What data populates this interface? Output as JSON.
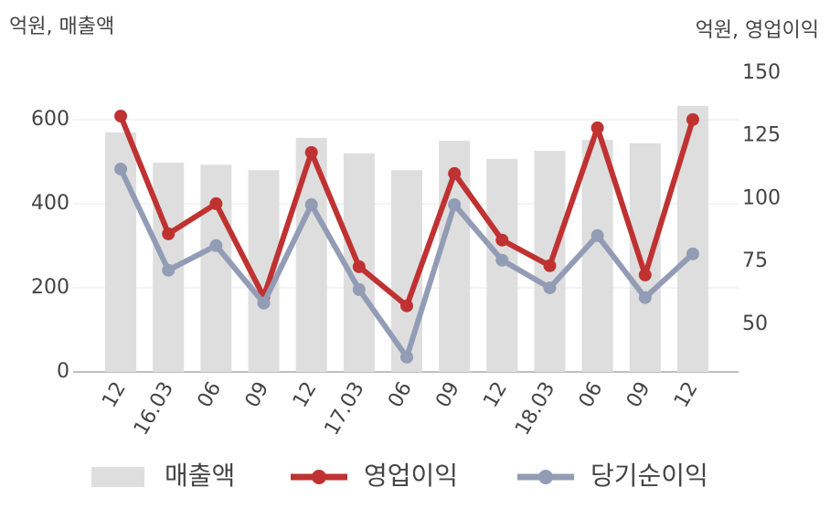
{
  "chart_data": {
    "type": "bar-line",
    "y_label": "억원, 매출액",
    "y2_label": "억원, 영업이익",
    "categories": [
      "12",
      "16.03",
      "06",
      "09",
      "12",
      "17.03",
      "06",
      "09",
      "12",
      "18.03",
      "06",
      "09",
      "12"
    ],
    "series": [
      {
        "name": "매출액",
        "type": "bar",
        "color": "#dedede",
        "values": [
          570,
          498,
          493,
          480,
          557,
          520,
          480,
          550,
          507,
          526,
          552,
          544,
          633
        ]
      },
      {
        "name": "영업이익",
        "type": "line",
        "axis": "y2",
        "color": "#c03232",
        "values": [
          132.9,
          86,
          98,
          60.9,
          118.4,
          72.9,
          57.3,
          110,
          83.5,
          73.3,
          128.2,
          69.6,
          131.5
        ]
      },
      {
        "name": "당기순이익",
        "type": "line",
        "axis": "y2",
        "color": "#929cb5",
        "values": [
          111.8,
          71.5,
          81.3,
          58.4,
          97.6,
          63.8,
          36.9,
          97.6,
          75.5,
          64.5,
          85.3,
          60.6,
          78
        ]
      }
    ],
    "ylim": [
      0,
      711
    ],
    "yticks": [
      0,
      200,
      400,
      600
    ],
    "y2lim": [
      31,
      150
    ],
    "y2ticks": [
      50,
      75,
      100,
      125,
      150
    ],
    "grid": true
  }
}
